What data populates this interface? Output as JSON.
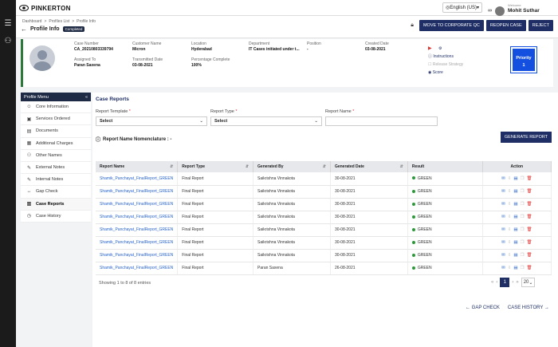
{
  "topbar": {
    "brand": "PINKERTON",
    "language": "English (US)",
    "user_welcome": "Welcome",
    "user_name": "Mohit Suthar",
    "user_role": "Case Manager"
  },
  "header": {
    "breadcrumb": [
      "Dashboard",
      ">",
      "Profiles List",
      ">",
      "Profile Info"
    ],
    "title": "Profile Info",
    "status": "Completed",
    "actions": [
      "MOVE TO CORPORATE QC",
      "REOPEN CASE",
      "REJECT"
    ]
  },
  "case": {
    "fields": [
      {
        "label": "Case Number",
        "value": "CA_20210803339794"
      },
      {
        "label": "Customer Name",
        "value": "Micron"
      },
      {
        "label": "Location",
        "value": "Hyderabad"
      },
      {
        "label": "Department",
        "value": "IT Cases initiated under t..."
      },
      {
        "label": "Position",
        "value": "-"
      },
      {
        "label": "Created Date",
        "value": "03-08-2021"
      },
      {
        "label": "Assigned To",
        "value": "Paran Saxena"
      },
      {
        "label": "Transmitted Date",
        "value": "03-08-2021"
      },
      {
        "label": "Percentage Complete",
        "value": "100%"
      }
    ],
    "links": {
      "instructions": "Instructions",
      "release": "Release Strategy",
      "score": "Score"
    },
    "priority_label": "Priority",
    "priority_value": "1"
  },
  "side_menu": {
    "title": "Profile Menu",
    "items": [
      "Core Information",
      "Services Ordered",
      "Documents",
      "Additional Charges",
      "Other Names",
      "External Notes",
      "Internal Notes",
      "Gap Check",
      "Case Reports",
      "Case History"
    ],
    "icons": [
      "person-icon",
      "briefcase-icon",
      "document-icon",
      "charges-icon",
      "people-icon",
      "note-icon",
      "note-icon",
      "gap-icon",
      "report-icon",
      "history-icon"
    ]
  },
  "main": {
    "section_title": "Case Reports",
    "report_template_label": "Report Template",
    "report_template_value": "Select",
    "report_type_label": "Report Type",
    "report_type_value": "Select",
    "report_name_label": "Report Name",
    "report_name_value": "",
    "nomenclature_label": "Report Name Nomenclature : -",
    "generate_button": "GENERATE REPORT"
  },
  "table": {
    "headers": [
      "Report Name",
      "Report Type",
      "Generated By",
      "Generated Date",
      "Result",
      "Action"
    ],
    "rows": [
      [
        "Shamik_Panchayat_FinalReport_GREEN",
        "Final Report",
        "Saikrishna Vinnakota",
        "30-08-2021",
        "GREEN"
      ],
      [
        "Shamik_Panchayat_FinalReport_GREEN",
        "Final Report",
        "Saikrishna Vinnakota",
        "30-08-2021",
        "GREEN"
      ],
      [
        "Shamik_Panchayat_FinalReport_GREEN",
        "Final Report",
        "Saikrishna Vinnakota",
        "30-08-2021",
        "GREEN"
      ],
      [
        "Shamik_Panchayat_FinalReport_GREEN",
        "Final Report",
        "Saikrishna Vinnakota",
        "30-08-2021",
        "GREEN"
      ],
      [
        "Shamik_Panchayat_FinalReport_GREEN",
        "Final Report",
        "Saikrishna Vinnakota",
        "30-08-2021",
        "GREEN"
      ],
      [
        "Shamik_Panchayat_FinalReport_GREEN",
        "Final Report",
        "Saikrishna Vinnakota",
        "30-08-2021",
        "GREEN"
      ],
      [
        "Shamik_Panchayat_FinalReport_GREEN",
        "Final Report",
        "Saikrishna Vinnakota",
        "30-08-2021",
        "GREEN"
      ],
      [
        "Shamik_Panchayat_FinalReport_GREEN",
        "Final Report",
        "Paran Saxena",
        "26-08-2021",
        "GREEN"
      ]
    ],
    "result_color": "#2c9a3b"
  },
  "footer": {
    "showing": "Showing 1 to 8 of 8 entries",
    "current_page": "1",
    "page_size": "20",
    "gap_check": "← GAP CHECK",
    "case_history": "CASE HISTORY →"
  }
}
